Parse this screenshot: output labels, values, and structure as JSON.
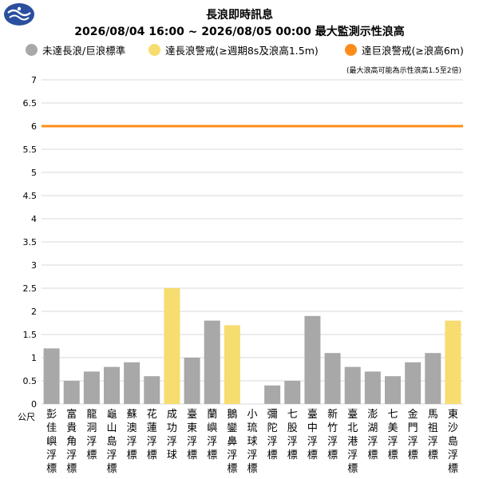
{
  "header": {
    "title": "長浪即時訊息",
    "subtitle": "2026/08/04 16:00 ~ 2026/08/05 00:00 最大監測示性浪高",
    "note": "(最大浪高可能為示性浪高1.5至2倍)"
  },
  "logo": {
    "icon": "agency-logo-icon",
    "color": "#2b4f9e"
  },
  "legend": [
    {
      "label": "未達長浪/巨浪標準",
      "color": "#a8a8a8"
    },
    {
      "label": "達長浪警戒(≥週期8s及浪高1.5m)",
      "color": "#f7dc6f"
    },
    {
      "label": "達巨浪警戒(≥浪高6m)",
      "color": "#ff8c1a"
    }
  ],
  "chart_data": {
    "type": "bar",
    "ylabel": "公尺",
    "ylim": [
      0,
      7
    ],
    "yticks": [
      0,
      0.5,
      1,
      1.5,
      2,
      2.5,
      3,
      3.5,
      4,
      4.5,
      5,
      5.5,
      6,
      6.5,
      7
    ],
    "grid": true,
    "threshold": {
      "value": 6,
      "color": "#ff8c1a"
    },
    "categories": [
      "彭佳嶼浮標",
      "富貴角浮標",
      "龍洞浮標",
      "龜山島浮標",
      "蘇澳浮標",
      "花蓮浮標",
      "成功浮球",
      "臺東浮標",
      "蘭嶼浮標",
      "鵝鑾鼻浮標",
      "小琉球浮標",
      "彌陀浮標",
      "七股浮標",
      "臺中浮標",
      "新竹浮標",
      "臺北港浮標",
      "澎湖浮標",
      "七美浮標",
      "金門浮標",
      "馬祖浮標",
      "東沙島浮標"
    ],
    "values": [
      1.2,
      0.5,
      0.7,
      0.8,
      0.9,
      0.6,
      2.5,
      1.0,
      1.8,
      1.7,
      null,
      0.4,
      0.5,
      1.9,
      1.1,
      0.8,
      0.7,
      0.6,
      0.9,
      1.1,
      1.8
    ],
    "levels": [
      0,
      0,
      0,
      0,
      0,
      0,
      1,
      0,
      0,
      1,
      0,
      0,
      0,
      0,
      0,
      0,
      0,
      0,
      0,
      0,
      1
    ]
  }
}
